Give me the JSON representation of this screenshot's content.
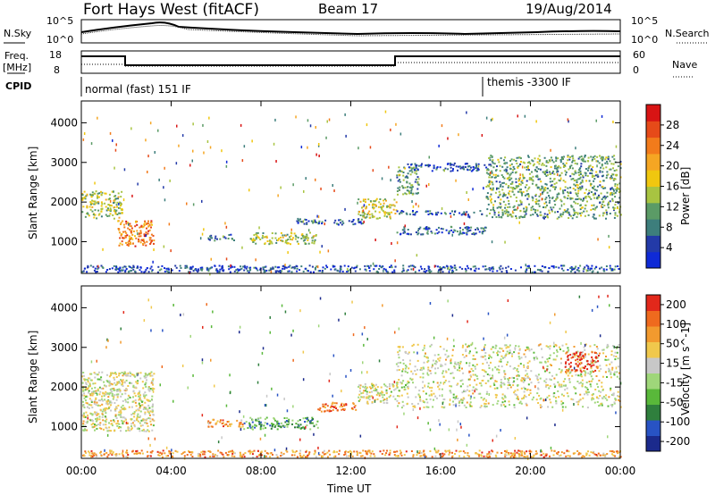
{
  "header": {
    "title": "Fort Hays West (fitACF)",
    "beam": "Beam 17",
    "date": "19/Aug/2014"
  },
  "top_panels": {
    "left_label_1": "N.Sky",
    "left_tick_hi": "10^5",
    "left_tick_lo": "10^0",
    "right_label_1": "N.Search",
    "right_tick_hi": "10^5",
    "right_tick_lo": "10^0",
    "freq_label_1": "Freq.",
    "freq_label_2": "[MHz]",
    "freq_ticks": [
      "18",
      "8"
    ],
    "nave_label": "Nave",
    "nave_ticks": [
      "60",
      "0"
    ],
    "cpid_label": "CPID",
    "cpid_1": "normal (fast) 151 IF",
    "cpid_2": "themis -3300 IF"
  },
  "time_axis": {
    "title": "Time UT",
    "ticks": [
      "00:00",
      "04:00",
      "08:00",
      "12:00",
      "16:00",
      "20:00",
      "00:00"
    ]
  },
  "chart_data": [
    {
      "type": "heatmap",
      "title": "",
      "xlabel": "",
      "ylabel": "Slant Range [km]",
      "y_ticks": [
        "1000",
        "2000",
        "3000",
        "4000"
      ],
      "ylim": [
        200,
        4550
      ],
      "colorbar_label": "Power [dB]",
      "colorbar_ticks": [
        "4",
        "8",
        "12",
        "16",
        "20",
        "24",
        "28"
      ],
      "colorbar_colors": [
        "#0f2ad6",
        "#233aa8",
        "#3d7e7c",
        "#5b9b66",
        "#a8c441",
        "#f0c70f",
        "#f5a623",
        "#f27b1b",
        "#e64a19",
        "#d81414"
      ],
      "regions": [
        {
          "t0": 0.0,
          "t1": 1.8,
          "r0": 1600,
          "r1": 2300,
          "level": 0.45
        },
        {
          "t0": 1.6,
          "t1": 3.2,
          "r0": 900,
          "r1": 1550,
          "level": 0.75
        },
        {
          "t0": 5.6,
          "t1": 6.8,
          "r0": 1050,
          "r1": 1200,
          "level": 0.25
        },
        {
          "t0": 7.5,
          "t1": 10.5,
          "r0": 950,
          "r1": 1250,
          "level": 0.45
        },
        {
          "t0": 12.3,
          "t1": 14.0,
          "r0": 1600,
          "r1": 2100,
          "level": 0.5
        },
        {
          "t0": 14.0,
          "t1": 15.0,
          "r0": 2200,
          "r1": 2900,
          "level": 0.35
        },
        {
          "t0": 14.5,
          "t1": 18.0,
          "r0": 2800,
          "r1": 3000,
          "level": 0.15
        },
        {
          "t0": 14.0,
          "t1": 18.0,
          "r0": 1700,
          "r1": 1800,
          "level": 0.15
        },
        {
          "t0": 14.0,
          "t1": 18.0,
          "r0": 1200,
          "r1": 1400,
          "level": 0.2
        },
        {
          "t0": 18.0,
          "t1": 24.0,
          "r0": 1600,
          "r1": 3200,
          "level": 0.35
        },
        {
          "t0": 9.5,
          "t1": 12.5,
          "r0": 1450,
          "r1": 1600,
          "level": 0.2
        },
        {
          "t0": 0.0,
          "t1": 24.0,
          "r0": 250,
          "r1": 420,
          "level": 0.15
        }
      ]
    },
    {
      "type": "heatmap",
      "title": "",
      "xlabel": "Time UT",
      "ylabel": "Slant Range [km]",
      "y_ticks": [
        "1000",
        "2000",
        "3000",
        "4000"
      ],
      "ylim": [
        200,
        4550
      ],
      "colorbar_label": "Velocity [m s^-1]",
      "colorbar_ticks": [
        "200",
        "100",
        "50",
        "15",
        "-15",
        "-50",
        "-100",
        "-200"
      ],
      "colorbar_colors": [
        "#1b2a8c",
        "#2853c4",
        "#2f7f3d",
        "#59b83a",
        "#9fd67a",
        "#c8c8c8",
        "#f0c84c",
        "#f29a2e",
        "#ef6a1e",
        "#e2281b"
      ],
      "regions": [
        {
          "t0": 0.0,
          "t1": 3.2,
          "r0": 900,
          "r1": 2400,
          "level": 0.55
        },
        {
          "t0": 5.6,
          "t1": 7.2,
          "r0": 1000,
          "r1": 1200,
          "level": 0.75
        },
        {
          "t0": 7.2,
          "t1": 10.5,
          "r0": 950,
          "r1": 1250,
          "level": 0.3
        },
        {
          "t0": 10.5,
          "t1": 12.2,
          "r0": 1400,
          "r1": 1650,
          "level": 0.85
        },
        {
          "t0": 12.3,
          "t1": 14.0,
          "r0": 1600,
          "r1": 2100,
          "level": 0.55
        },
        {
          "t0": 14.0,
          "t1": 24.0,
          "r0": 1500,
          "r1": 3100,
          "level": 0.55
        },
        {
          "t0": 21.5,
          "t1": 23.0,
          "r0": 2400,
          "r1": 2900,
          "level": 0.95
        },
        {
          "t0": 0.0,
          "t1": 24.0,
          "r0": 250,
          "r1": 420,
          "level": 0.75
        }
      ]
    }
  ]
}
